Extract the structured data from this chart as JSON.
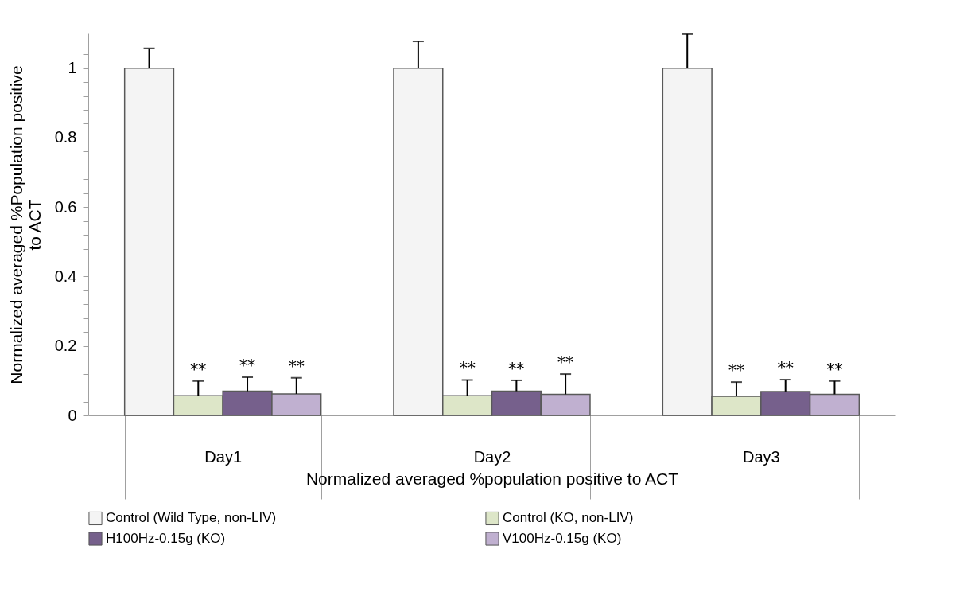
{
  "chart_data": {
    "type": "bar",
    "xlabel": "Normalized averaged %population positive to ACT",
    "ylabel": "Normalized averaged %Population positive to ACT",
    "categories": [
      "Day1",
      "Day2",
      "Day3"
    ],
    "series": [
      {
        "name": "Control (Wild Type, non-LIV)",
        "color": "#f4f4f4",
        "values": [
          1,
          1,
          1
        ],
        "errors": [
          [
            1,
            1.057
          ],
          [
            1,
            1.077
          ],
          [
            1,
            1.098
          ]
        ]
      },
      {
        "name": "Control (KO, non-LIV)",
        "color": "#dde6c8",
        "values": [
          0.057,
          0.057,
          0.055
        ],
        "errors": [
          [
            0.057,
            0.099
          ],
          [
            0.057,
            0.102
          ],
          [
            0.055,
            0.096
          ]
        ],
        "value_labels": [
          "**",
          "**",
          "**"
        ]
      },
      {
        "name": "H100Hz-0.15g (KO)",
        "color": "#76608c",
        "values": [
          0.07,
          0.07,
          0.069
        ],
        "errors": [
          [
            0.07,
            0.11
          ],
          [
            0.07,
            0.101
          ],
          [
            0.069,
            0.103
          ]
        ],
        "value_labels": [
          "**",
          "**",
          "**"
        ]
      },
      {
        "name": "V100Hz-0.15g (KO)",
        "color": "#c0b0d0",
        "values": [
          0.062,
          0.061,
          0.061
        ],
        "errors": [
          [
            0.062,
            0.108
          ],
          [
            0.061,
            0.119
          ],
          [
            0.061,
            0.099
          ]
        ],
        "value_labels": [
          "**",
          "**",
          "**"
        ]
      }
    ],
    "ylim": [
      0,
      1.1
    ],
    "yticks": [
      0,
      {
        "value": 0.04,
        "label": null
      },
      {
        "value": 0.08,
        "label": null
      },
      {
        "value": 0.12,
        "label": null
      },
      {
        "value": 0.16,
        "label": null
      },
      0.2,
      {
        "value": 0.24,
        "label": null
      },
      {
        "value": 0.28,
        "label": null
      },
      {
        "value": 0.32,
        "label": null
      },
      {
        "value": 0.36,
        "label": null
      },
      0.4,
      {
        "value": 0.44,
        "label": null
      },
      {
        "value": 0.48,
        "label": null
      },
      {
        "value": 0.52,
        "label": null
      },
      {
        "value": 0.56,
        "label": null
      },
      0.6,
      {
        "value": 0.64,
        "label": null
      },
      {
        "value": 0.68,
        "label": null
      },
      {
        "value": 0.72,
        "label": null
      },
      {
        "value": 0.76,
        "label": null
      },
      0.8,
      {
        "value": 0.84,
        "label": null
      },
      {
        "value": 0.88,
        "label": null
      },
      {
        "value": 0.92,
        "label": null
      },
      {
        "value": 0.96,
        "label": null
      },
      1,
      {
        "value": 1.04,
        "label": null
      },
      {
        "value": 1.08,
        "label": null
      }
    ],
    "grid": false,
    "legend": "bottom"
  }
}
